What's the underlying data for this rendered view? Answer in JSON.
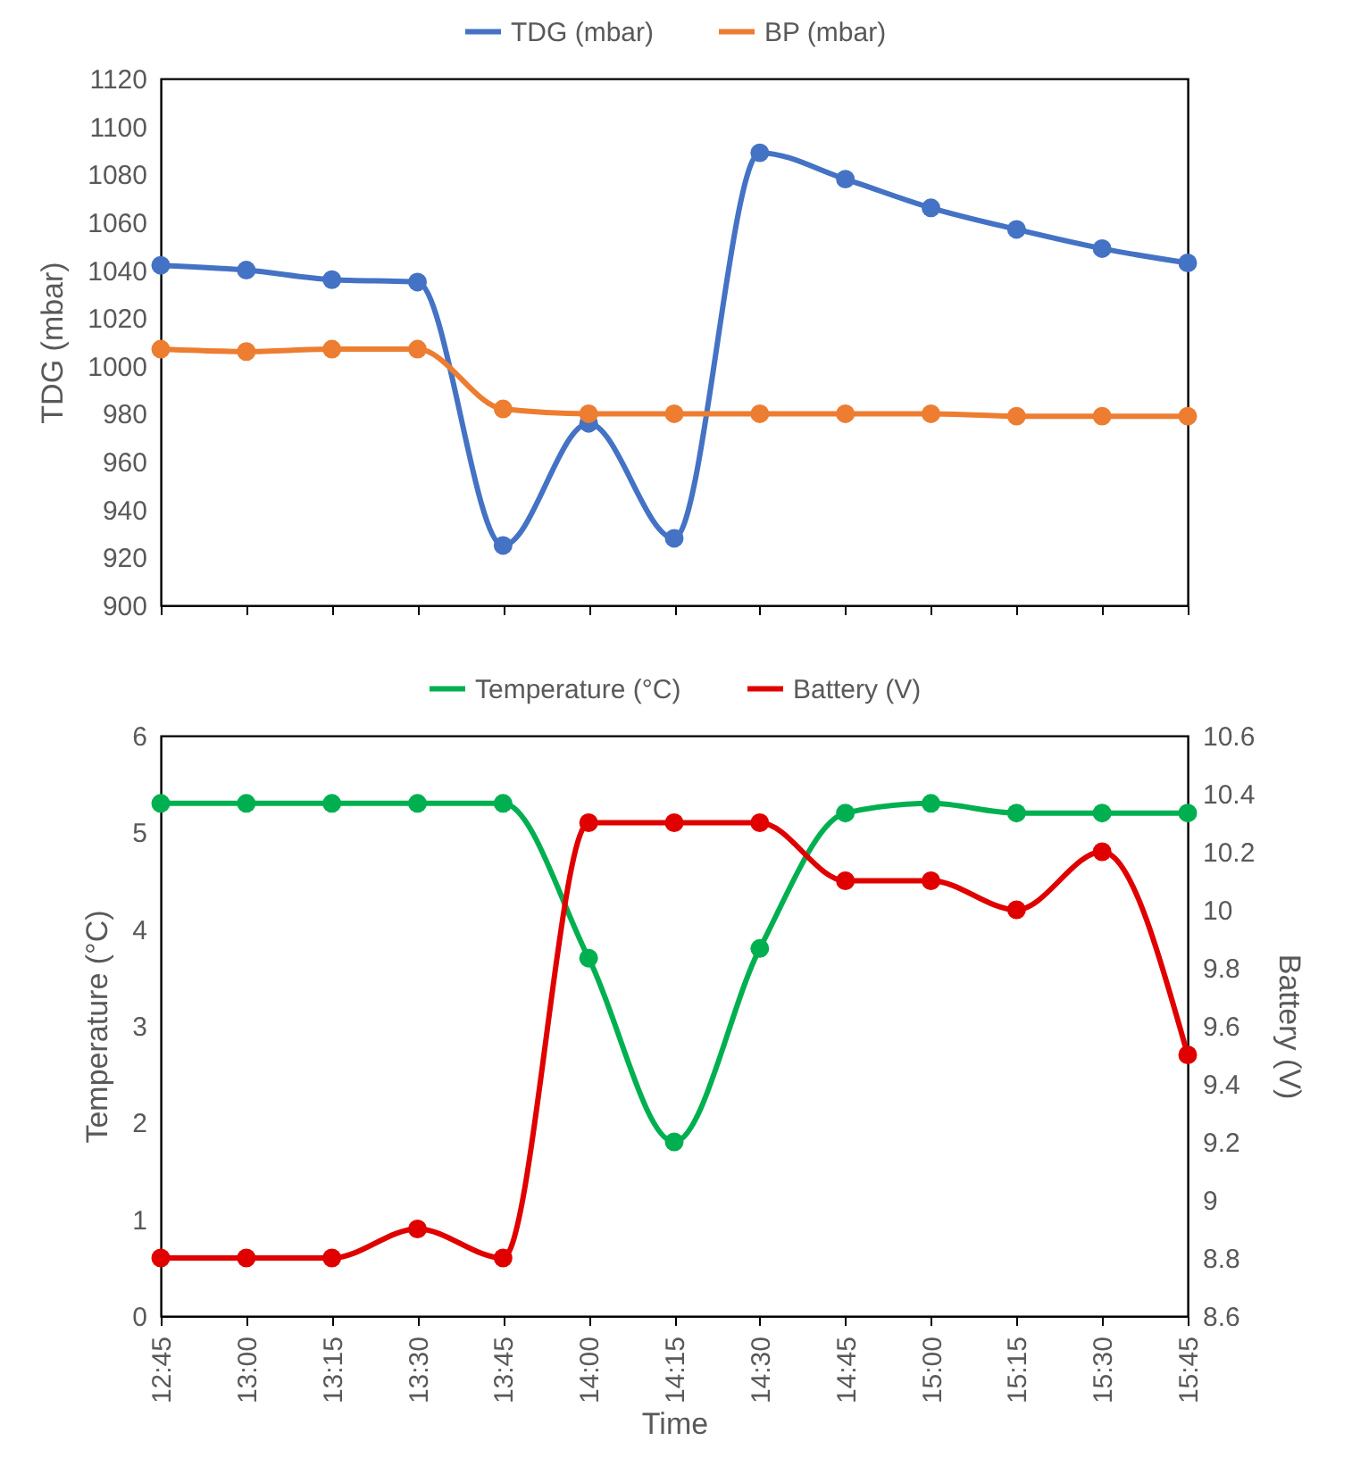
{
  "chart_data": [
    {
      "type": "line",
      "categories": [
        null,
        null,
        null,
        null,
        null,
        null,
        null,
        null,
        null,
        null,
        null,
        null,
        null
      ],
      "tick_labels": "y",
      "ylabel": "TDG (mbar)",
      "ylim": [
        900,
        1120
      ],
      "yticks": [
        900,
        920,
        940,
        960,
        980,
        1000,
        1020,
        1040,
        1060,
        1080,
        1100,
        1120
      ],
      "legend": "top",
      "marker": "circle",
      "series": [
        {
          "name": "TDG (mbar)",
          "color": "#4472c4",
          "values": [
            1042,
            1040,
            1036,
            1035,
            925,
            976,
            928,
            1089,
            1078,
            1066,
            1057,
            1049,
            1043
          ]
        },
        {
          "name": "BP (mbar)",
          "color": "#ed7d31",
          "values": [
            1007,
            1006,
            1007,
            1007,
            982,
            980,
            980,
            980,
            980,
            980,
            979,
            979,
            979
          ]
        }
      ]
    },
    {
      "type": "line",
      "categories": [
        "12:45",
        "13:00",
        "13:15",
        "13:30",
        "13:45",
        "14:00",
        "14:15",
        "14:30",
        "14:45",
        "15:00",
        "15:15",
        "15:30",
        "15:45"
      ],
      "xlabel": "Time",
      "ylabel": "Temperature (°C)",
      "y2label": "Battery (V)",
      "ylim": [
        0,
        6
      ],
      "yticks": [
        0,
        1,
        2,
        3,
        4,
        5,
        6
      ],
      "y2lim": [
        8.6,
        10.6
      ],
      "y2ticks": [
        8.6,
        8.8,
        9,
        9.2,
        9.4,
        9.6,
        9.8,
        10,
        10.2,
        10.4,
        10.6
      ],
      "legend": "top",
      "marker": "circle",
      "series": [
        {
          "name": "Temperature (°C)",
          "color": "#00b050",
          "values": [
            5.3,
            5.3,
            5.3,
            5.3,
            5.3,
            3.7,
            1.8,
            3.8,
            5.2,
            5.3,
            5.2,
            5.2,
            5.2
          ]
        },
        {
          "name": "Battery (V)",
          "color": "#e00000",
          "values": [
            8.8,
            8.8,
            8.8,
            8.9,
            8.8,
            10.3,
            10.3,
            10.3,
            10.1,
            10.1,
            10.0,
            10.2,
            9.5
          ],
          "axis": "y2"
        }
      ]
    }
  ]
}
